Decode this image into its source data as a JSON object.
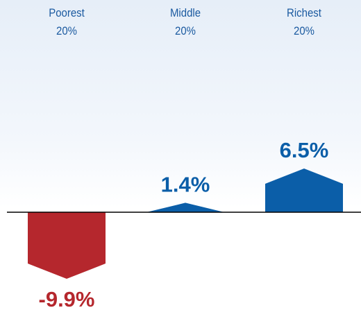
{
  "chart_data": {
    "type": "bar",
    "categories": [
      "Poorest\n20%",
      "Middle\n20%",
      "Richest\n20%"
    ],
    "values": [
      -9.9,
      1.4,
      6.5
    ],
    "value_labels": [
      "-9.9%",
      "1.4%",
      "6.5%"
    ],
    "colors": [
      "#b5272d",
      "#0b5ea8",
      "#0b5ea8"
    ]
  }
}
